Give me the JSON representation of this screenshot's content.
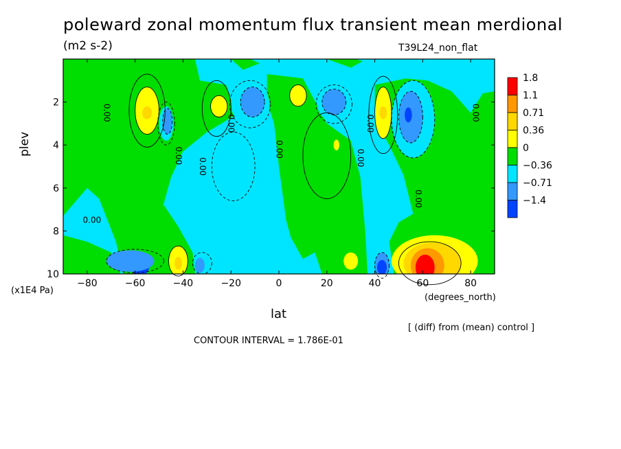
{
  "header": {
    "title": "poleward zonal momentum flux transient mean merdional",
    "units": "(m2 s-2)",
    "run_name": "T39L24_non_flat"
  },
  "axes": {
    "y_label": "plev",
    "y_units": "(x1E4 Pa)",
    "x_label": "lat",
    "x_units": "(degrees_north)"
  },
  "footer": {
    "diff_note": "[ (diff) from (mean) control ]",
    "contour_interval": "CONTOUR INTERVAL = 1.786E-01"
  },
  "chart_data": {
    "type": "contour",
    "title": "poleward zonal momentum flux transient mean merdional",
    "units": "(m2 s-2)",
    "xlabel": "lat",
    "ylabel": "plev",
    "xlim": [
      -90,
      90
    ],
    "ylim": [
      10,
      0
    ],
    "x_ticks": [
      -80,
      -60,
      -40,
      -20,
      0,
      20,
      40,
      60,
      80
    ],
    "y_ticks": [
      2,
      4,
      6,
      8,
      10
    ],
    "contour_interval": 0.1786,
    "contour_labels": [
      "0.00",
      "0.00",
      "0.00",
      "0.00",
      "0.00",
      "0.00",
      "0.00",
      "0.00",
      "0.00",
      "0.00"
    ],
    "legend": {
      "placement": "right",
      "levels": [
        "1.8",
        "1.1",
        "0.71",
        "0.36",
        "0",
        "-0.36",
        "-0.71",
        "-1.4"
      ],
      "colors": [
        "#ff0000",
        "#ff9900",
        "#ffd800",
        "#ffff00",
        "#00dd00",
        "#00e5ff",
        "#3399ff",
        "#0044ff"
      ]
    },
    "features": [
      {
        "lat": -55,
        "plev": 2.5,
        "sign": "positive",
        "peak": 0.71
      },
      {
        "lat": -47,
        "plev": 3.0,
        "sign": "negative",
        "peak": -0.36
      },
      {
        "lat": -25,
        "plev": 2.2,
        "sign": "positive",
        "peak": 0.71
      },
      {
        "lat": -12,
        "plev": 2.0,
        "sign": "negative",
        "peak": -0.36
      },
      {
        "lat": 8,
        "plev": 1.7,
        "sign": "positive",
        "peak": 0.71
      },
      {
        "lat": 23,
        "plev": 2.0,
        "sign": "negative",
        "peak": -0.71
      },
      {
        "lat": 43,
        "plev": 2.5,
        "sign": "positive",
        "peak": 0.71
      },
      {
        "lat": 55,
        "plev": 2.6,
        "sign": "negative",
        "peak": -0.71
      },
      {
        "lat": 62,
        "plev": 9.5,
        "sign": "positive",
        "peak": 1.8
      },
      {
        "lat": -57,
        "plev": 9.6,
        "sign": "negative",
        "peak": -0.71
      },
      {
        "lat": -42,
        "plev": 9.4,
        "sign": "positive",
        "peak": 0.71
      },
      {
        "lat": 43,
        "plev": 9.6,
        "sign": "negative",
        "peak": -0.71
      }
    ]
  }
}
